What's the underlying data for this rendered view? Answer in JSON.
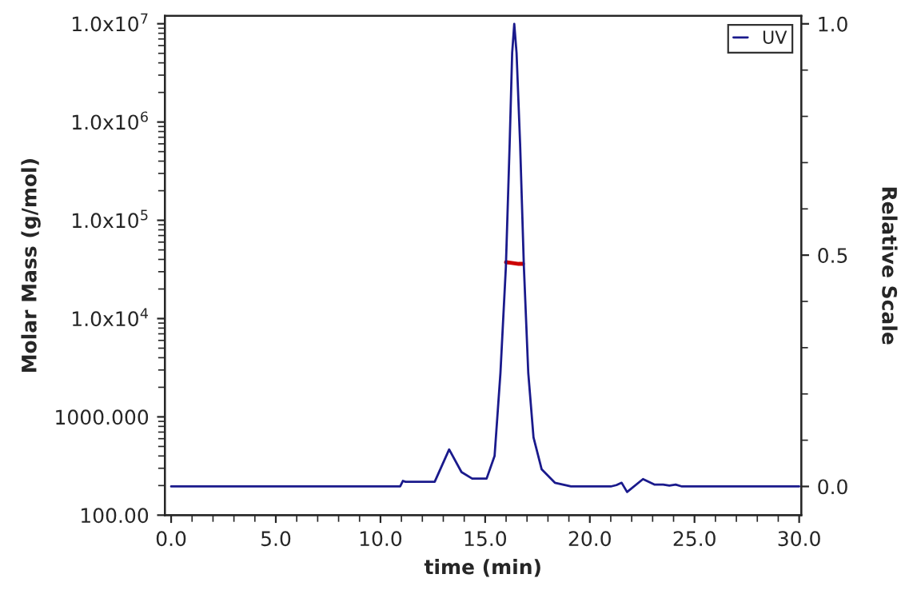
{
  "chart_data": {
    "type": "line",
    "xlabel": "time (min)",
    "ylabel": "Molar Mass (g/mol)",
    "y2label": "Relative Scale",
    "log": "y",
    "legend": "top right",
    "grid": false,
    "xlim": [
      -0.3,
      30.1
    ],
    "xticks": [
      {
        "value": 0,
        "label": "0.0"
      },
      {
        "value": 5,
        "label": "5.0"
      },
      {
        "value": 10,
        "label": "10.0"
      },
      {
        "value": 15,
        "label": "15.0"
      },
      {
        "value": 20,
        "label": "20.0"
      },
      {
        "value": 25,
        "label": "25.0"
      },
      {
        "value": 30,
        "label": "30.0"
      }
    ],
    "ylim": [
      100,
      12000000
    ],
    "yticks": [
      {
        "value": 100,
        "label": "100.00"
      },
      {
        "value": 1000,
        "label": "1000.000"
      },
      {
        "value": 10000,
        "label": "1.0x10$^{4}$"
      },
      {
        "value": 100000,
        "label": "1.0x10$^{5}$"
      },
      {
        "value": 1000000,
        "label": "1.0x10$^{6}$"
      },
      {
        "value": 10000000,
        "label": "1.0x10$^{7}$"
      }
    ],
    "y2lim": [
      -0.062,
      1.017
    ],
    "y2ticks": [
      {
        "value": 0,
        "label": "0.0"
      },
      {
        "value": 0.5,
        "label": "0.5"
      },
      {
        "value": 1,
        "label": "1.0"
      }
    ],
    "series": [
      {
        "name": "UV",
        "color": "#1a1a8c",
        "axis": "y2",
        "x": [
          0,
          10.94,
          11.07,
          11.2,
          12.59,
          13.28,
          13.87,
          14.38,
          15.07,
          15.45,
          15.73,
          15.99,
          16.17,
          16.29,
          16.39,
          16.5,
          16.67,
          16.85,
          17.06,
          17.31,
          17.7,
          18.33,
          19.1,
          21.0,
          21.27,
          21.52,
          21.78,
          22.54,
          23.1,
          23.5,
          23.8,
          24.1,
          24.4,
          30
        ],
        "values": [
          0,
          0,
          0.012,
          0.01,
          0.01,
          0.08,
          0.031,
          0.017,
          0.017,
          0.066,
          0.245,
          0.475,
          0.74,
          0.937,
          1.0,
          0.937,
          0.74,
          0.475,
          0.245,
          0.106,
          0.037,
          0.008,
          0,
          0,
          0.003,
          0.008,
          -0.012,
          0.016,
          0.004,
          0.004,
          0.002,
          0.004,
          0,
          0
        ]
      },
      {
        "color": "#cc0000",
        "axis": "y",
        "x": [
          16.0,
          16.2,
          16.4,
          16.6,
          16.8
        ],
        "values": [
          37500,
          37000,
          36500,
          36000,
          36000
        ]
      }
    ]
  }
}
